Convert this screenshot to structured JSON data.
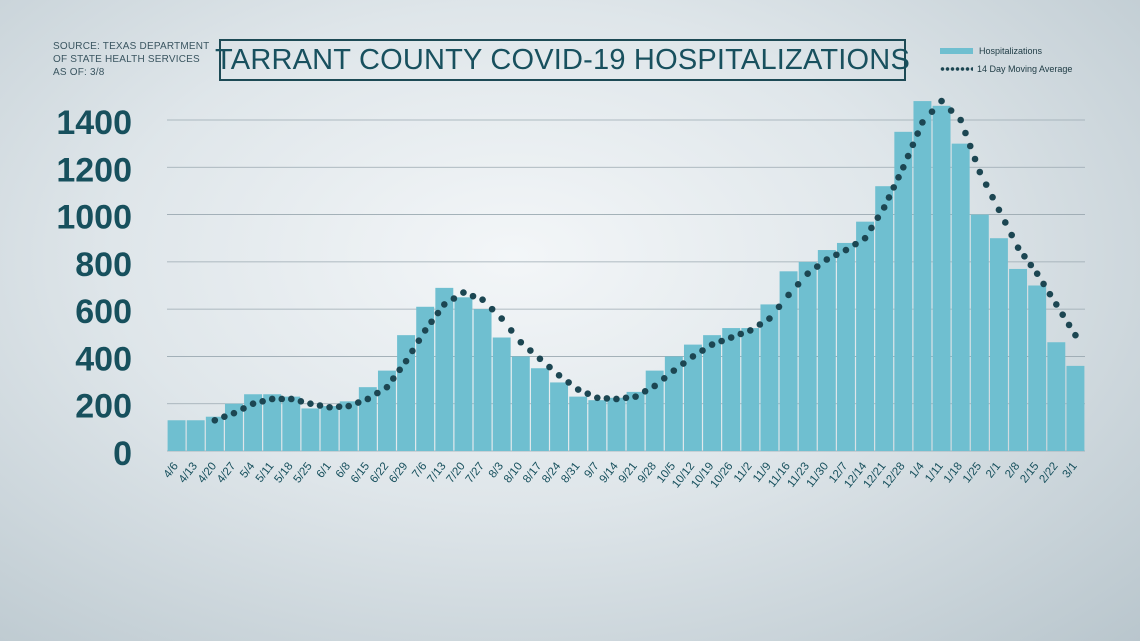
{
  "source": {
    "line1": "SOURCE: TEXAS DEPARTMENT",
    "line2": "OF STATE HEALTH SERVICES",
    "line3": "AS OF: 3/8"
  },
  "legend": {
    "bars_label": "Hospitalizations",
    "line_label": "14 Day Moving Average"
  },
  "colors": {
    "bars": "#6fbfd0",
    "line": "#1c4652",
    "axis_text": "#17505d",
    "grid": "#9aa8b0"
  },
  "chart_data": {
    "type": "bar",
    "title": "TARRANT COUNTY COVID-19 HOSPITALIZATIONS",
    "xlabel": "",
    "ylabel": "",
    "ylim": [
      0,
      1400
    ],
    "yticks": [
      0,
      200,
      400,
      600,
      800,
      1000,
      1200,
      1400
    ],
    "grid": true,
    "legend_position": "top-right",
    "x_tick_labels": [
      "4/6",
      "4/13",
      "4/20",
      "4/27",
      "5/4",
      "5/11",
      "5/18",
      "5/25",
      "6/1",
      "6/8",
      "6/15",
      "6/22",
      "6/29",
      "7/6",
      "7/13",
      "7/20",
      "7/27",
      "8/3",
      "8/10",
      "8/17",
      "8/24",
      "8/31",
      "9/7",
      "9/14",
      "9/21",
      "9/28",
      "10/5",
      "10/12",
      "10/19",
      "10/26",
      "11/2",
      "11/9",
      "11/16",
      "11/23",
      "11/30",
      "12/7",
      "12/14",
      "12/21",
      "12/28",
      "1/4",
      "1/11",
      "1/18",
      "1/25",
      "2/1",
      "2/8",
      "2/15",
      "2/22",
      "3/1"
    ],
    "categories": [
      "4/6",
      "4/13",
      "4/20",
      "4/27",
      "5/4",
      "5/11",
      "5/18",
      "5/25",
      "6/1",
      "6/8",
      "6/15",
      "6/22",
      "6/29",
      "7/6",
      "7/13",
      "7/20",
      "7/27",
      "8/3",
      "8/10",
      "8/17",
      "8/24",
      "8/31",
      "9/7",
      "9/14",
      "9/21",
      "9/28",
      "10/5",
      "10/12",
      "10/19",
      "10/26",
      "11/2",
      "11/9",
      "11/16",
      "11/23",
      "11/30",
      "12/7",
      "12/14",
      "12/21",
      "12/28",
      "1/4",
      "1/11",
      "1/18",
      "1/25",
      "2/1",
      "2/8",
      "2/15",
      "2/22",
      "3/1"
    ],
    "series": [
      {
        "name": "Hospitalizations",
        "type": "bar",
        "values": [
          130,
          130,
          145,
          200,
          240,
          240,
          230,
          180,
          190,
          210,
          270,
          340,
          490,
          610,
          690,
          650,
          600,
          480,
          400,
          350,
          290,
          230,
          215,
          225,
          250,
          340,
          400,
          450,
          490,
          520,
          520,
          620,
          760,
          800,
          850,
          880,
          970,
          1120,
          1350,
          1480,
          1460,
          1300,
          1000,
          900,
          770,
          700,
          460,
          360
        ]
      },
      {
        "name": "14 Day Moving Average",
        "type": "line",
        "values": [
          null,
          null,
          130,
          160,
          200,
          220,
          220,
          200,
          185,
          190,
          220,
          270,
          380,
          510,
          620,
          670,
          640,
          560,
          460,
          390,
          320,
          260,
          225,
          220,
          230,
          275,
          340,
          400,
          450,
          480,
          510,
          560,
          660,
          750,
          810,
          850,
          900,
          1030,
          1200,
          1390,
          1480,
          1400,
          1180,
          1020,
          860,
          750,
          620,
          490
        ]
      }
    ]
  }
}
